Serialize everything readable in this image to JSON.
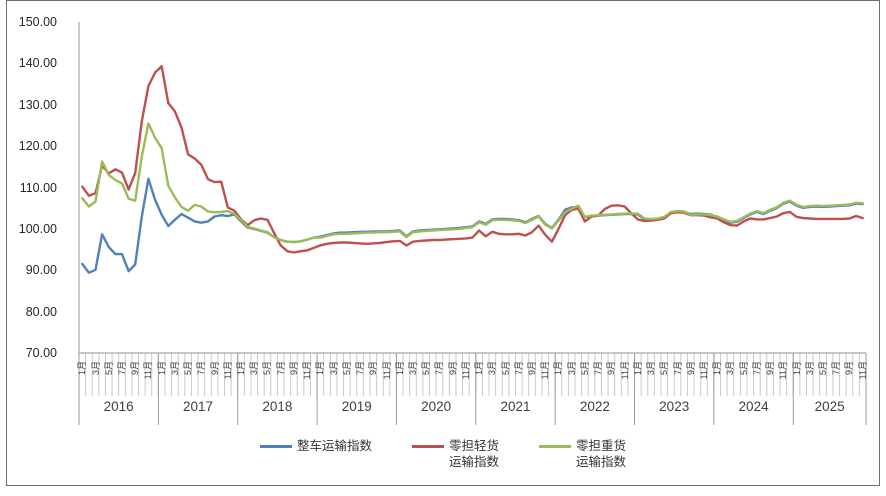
{
  "chart_data": {
    "type": "line",
    "title": "",
    "x_unit": "month",
    "x_start": "2016-01",
    "x_end": "2025-11",
    "ylim": [
      70,
      150
    ],
    "grid": false,
    "legend_position": "bottom",
    "y_tick_labels": [
      "150.00",
      "140.00",
      "130.00",
      "120.00",
      "110.00",
      "100.00",
      "90.00",
      "80.00",
      "70.00"
    ],
    "year_labels": [
      "2016",
      "2017",
      "2018",
      "2019",
      "2020",
      "2021",
      "2022",
      "2023",
      "2024",
      "2025"
    ],
    "month_tick_labels": [
      "1月",
      "3月",
      "5月",
      "7月",
      "9月",
      "11月"
    ],
    "axis_color": "#a6a6a6",
    "tick_color": "#c9c9c9",
    "year_separator_color": "#9a9a9a",
    "series": [
      {
        "name": "整车运输指数",
        "color": "#4F81BD",
        "values": [
          91.5,
          89.4,
          90.1,
          98.7,
          95.6,
          93.9,
          93.9,
          89.8,
          91.4,
          103.0,
          112.1,
          107.0,
          103.4,
          100.7,
          102.2,
          103.6,
          102.7,
          101.8,
          101.5,
          101.8,
          103.0,
          103.3,
          103.1,
          103.5,
          101.8,
          100.3,
          100.0,
          99.5,
          99.1,
          98.0,
          97.3,
          96.9,
          96.8,
          97.0,
          97.4,
          97.9,
          98.1,
          98.5,
          98.9,
          99.1,
          99.1,
          99.2,
          99.3,
          99.3,
          99.4,
          99.4,
          99.4,
          99.5,
          99.6,
          98.2,
          99.4,
          99.6,
          99.7,
          99.8,
          99.9,
          100.0,
          100.1,
          100.2,
          100.4,
          100.6,
          101.8,
          101.2,
          102.3,
          102.4,
          102.4,
          102.3,
          102.1,
          101.6,
          102.4,
          103.1,
          101.2,
          100.2,
          102.2,
          104.6,
          105.2,
          105.3,
          102.9,
          103.1,
          103.2,
          103.3,
          103.4,
          103.5,
          103.6,
          103.6,
          103.5,
          102.3,
          102.2,
          102.4,
          102.8,
          104.0,
          104.2,
          104.1,
          103.6,
          103.7,
          103.6,
          103.5,
          102.8,
          102.1,
          101.5,
          101.7,
          102.6,
          103.5,
          104.1,
          103.6,
          104.4,
          105.0,
          106.1,
          106.6,
          105.6,
          105.1,
          105.3,
          105.4,
          105.3,
          105.4,
          105.5,
          105.6,
          105.7,
          106.1,
          106.0
        ]
      },
      {
        "name": "零担轻货运输指数",
        "legend_lines": [
          "零担轻货",
          "运输指数"
        ],
        "color": "#C0504D",
        "values": [
          110.2,
          108.0,
          108.6,
          115.3,
          113.4,
          114.4,
          113.6,
          109.5,
          113.5,
          126.0,
          134.5,
          137.8,
          139.3,
          130.4,
          128.4,
          124.5,
          118.0,
          117.0,
          115.5,
          112.0,
          111.3,
          111.4,
          105.2,
          104.4,
          102.3,
          100.9,
          102.1,
          102.5,
          102.2,
          99.0,
          96.0,
          94.6,
          94.3,
          94.6,
          94.8,
          95.4,
          96.0,
          96.4,
          96.6,
          96.7,
          96.7,
          96.6,
          96.5,
          96.4,
          96.5,
          96.6,
          96.8,
          97.0,
          97.1,
          96.0,
          96.9,
          97.1,
          97.2,
          97.3,
          97.3,
          97.4,
          97.5,
          97.6,
          97.7,
          97.9,
          99.6,
          98.2,
          99.3,
          98.8,
          98.7,
          98.7,
          98.8,
          98.4,
          99.2,
          100.8,
          98.6,
          96.9,
          100.0,
          103.3,
          104.6,
          104.9,
          101.8,
          103.0,
          103.2,
          104.8,
          105.6,
          105.7,
          105.4,
          103.8,
          102.3,
          101.9,
          102.0,
          102.2,
          102.5,
          103.8,
          104.0,
          103.9,
          103.3,
          103.3,
          103.2,
          102.8,
          102.5,
          101.6,
          100.9,
          100.8,
          101.8,
          102.5,
          102.3,
          102.3,
          102.6,
          103.0,
          103.8,
          104.1,
          102.9,
          102.6,
          102.5,
          102.4,
          102.4,
          102.4,
          102.4,
          102.4,
          102.5,
          103.1,
          102.6
        ]
      },
      {
        "name": "零担重货运输指数",
        "legend_lines": [
          "零担重货",
          "运输指数"
        ],
        "color": "#9BBB59",
        "values": [
          107.4,
          105.4,
          106.6,
          116.3,
          113.0,
          111.8,
          111.0,
          107.3,
          106.8,
          117.5,
          125.5,
          122.0,
          119.5,
          110.4,
          107.6,
          105.3,
          104.4,
          105.8,
          105.4,
          104.2,
          104.0,
          104.1,
          104.3,
          103.6,
          102.1,
          100.5,
          100.1,
          99.6,
          99.2,
          98.0,
          97.3,
          96.9,
          96.8,
          97.0,
          97.4,
          97.9,
          97.9,
          98.3,
          98.7,
          98.8,
          98.8,
          98.9,
          99.0,
          99.1,
          99.1,
          99.2,
          99.2,
          99.3,
          99.4,
          98.0,
          99.2,
          99.4,
          99.5,
          99.6,
          99.7,
          99.8,
          99.9,
          100.0,
          100.2,
          100.4,
          101.6,
          101.0,
          102.1,
          102.2,
          102.2,
          102.1,
          101.9,
          101.4,
          102.2,
          103.0,
          101.0,
          100.1,
          102.0,
          104.0,
          104.9,
          105.6,
          102.9,
          103.2,
          103.3,
          103.4,
          103.5,
          103.6,
          103.7,
          103.7,
          103.7,
          102.5,
          102.4,
          102.5,
          102.9,
          104.1,
          104.3,
          104.2,
          103.4,
          103.5,
          103.5,
          103.4,
          103.0,
          102.3,
          101.7,
          101.9,
          102.8,
          103.7,
          104.3,
          103.8,
          104.6,
          105.2,
          106.3,
          106.8,
          105.8,
          105.3,
          105.5,
          105.6,
          105.5,
          105.6,
          105.7,
          105.8,
          105.9,
          106.3,
          106.2
        ]
      }
    ]
  }
}
